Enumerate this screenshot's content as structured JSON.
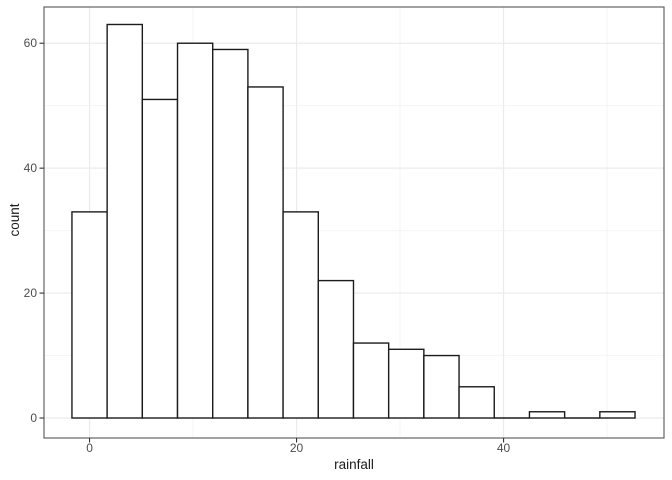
{
  "chart_data": {
    "type": "bar",
    "subtype": "histogram",
    "title": "",
    "xlabel": "rainfall",
    "ylabel": "count",
    "bin_start": -1.7,
    "bin_width": 3.4,
    "bin_edges": [
      -1.7,
      1.7,
      5.1,
      8.5,
      11.9,
      15.3,
      18.7,
      22.1,
      25.5,
      28.9,
      32.3,
      35.7,
      39.1,
      42.5,
      45.9,
      49.3,
      52.7
    ],
    "counts": [
      33,
      63,
      51,
      60,
      59,
      53,
      33,
      22,
      12,
      11,
      10,
      5,
      0,
      1,
      0,
      1
    ],
    "xlim": [
      -4.4,
      55.5
    ],
    "ylim": [
      -3.2,
      65.8
    ],
    "x_major_ticks": [
      0,
      20,
      40
    ],
    "x_tick_labels": [
      "0",
      "20",
      "40"
    ],
    "x_minor_ticks": [
      10,
      30,
      50
    ],
    "y_major_ticks": [
      0,
      20,
      40,
      60
    ],
    "y_tick_labels": [
      "0",
      "20",
      "40",
      "60"
    ],
    "y_minor_ticks": [
      10,
      30,
      50
    ],
    "grid": true,
    "legend_position": "none",
    "colors": {
      "background": "#ffffff",
      "panel_background": "#ffffff",
      "grid_major": "#ebebeb",
      "grid_minor": "#f4f4f4",
      "panel_border": "#555555",
      "bar_fill": "#ffffff",
      "bar_stroke": "#1c1c1c",
      "tick_mark": "#333333",
      "tick_label": "#4d4d4d",
      "axis_title": "#1a1a1a"
    }
  }
}
